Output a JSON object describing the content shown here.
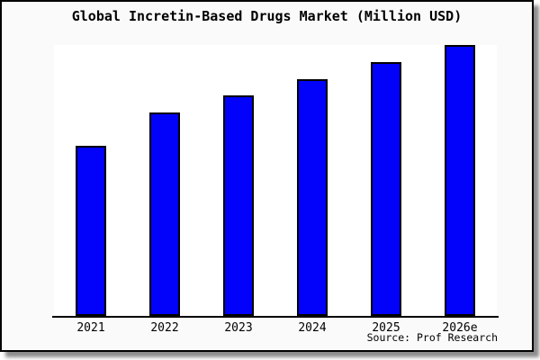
{
  "figure": {
    "title": "Global Incretin-Based Drugs Market (Million USD)",
    "source_note": "Source: Prof Research",
    "colors": {
      "figure_background": "#fafafa",
      "plot_background": "#ffffff",
      "bar_fill": "#0202fa",
      "bar_border": "#000000",
      "axis": "#000000",
      "frame_border": "#000000",
      "shadow": "#8c8c8c",
      "text": "#000000"
    }
  },
  "chart_data": {
    "type": "bar",
    "title": "Global Incretin-Based Drugs Market (Million USD)",
    "categories": [
      "2021",
      "2022",
      "2023",
      "2024",
      "2025",
      "2026e"
    ],
    "values": [
      189,
      226,
      245,
      263,
      282,
      301
    ],
    "value_note": "no y-axis scale shown in image; values are relative bar heights read from pixels",
    "xlabel": "",
    "ylabel": "",
    "ylim": [
      0,
      301
    ],
    "grid": false,
    "legend": "none",
    "source": "Source: Prof Research"
  }
}
